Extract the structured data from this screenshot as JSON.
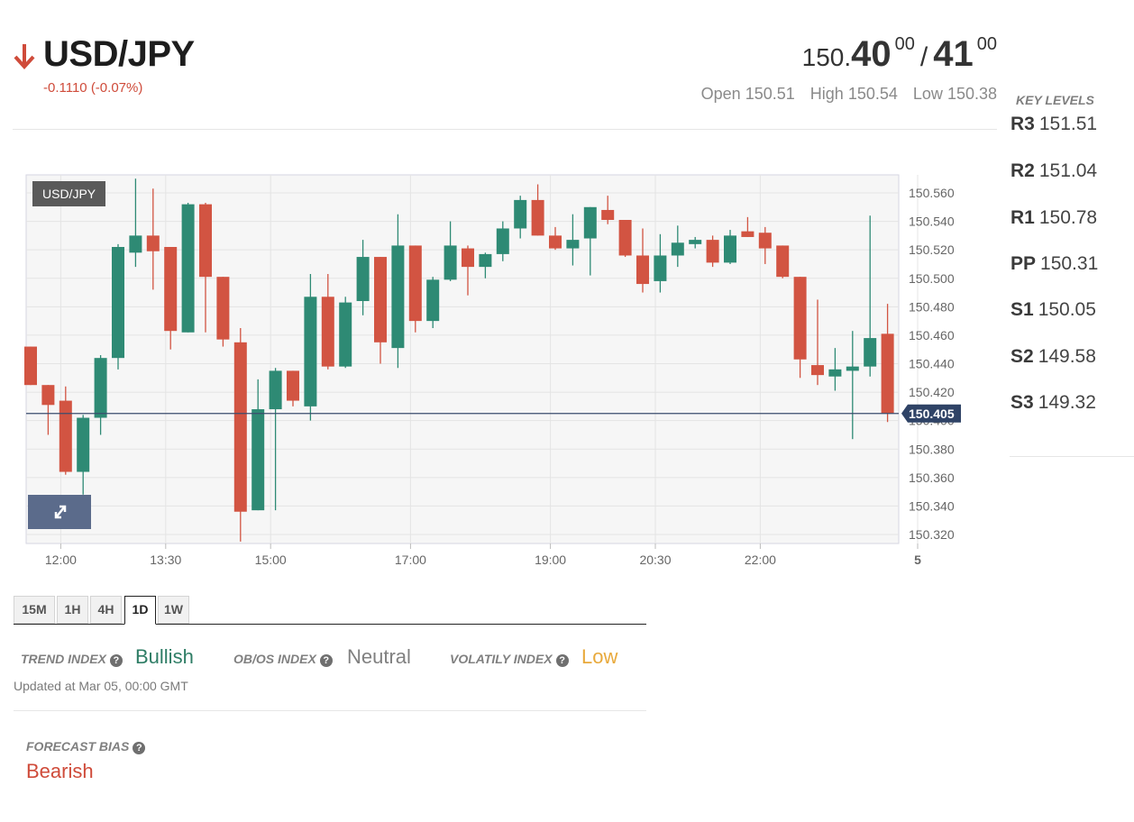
{
  "header": {
    "pair": "USD/JPY",
    "direction": "down",
    "change": "-0.1110 (-0.07%)",
    "bid_int": "150.",
    "bid_big": "40",
    "bid_frac": "00",
    "slash": "/",
    "ask_big": "41",
    "ask_frac": "00",
    "open_label": "Open",
    "open_value": "150.51",
    "high_label": "High",
    "high_value": "150.54",
    "low_label": "Low",
    "low_value": "150.38"
  },
  "key_levels": {
    "title": "KEY LEVELS",
    "items": [
      {
        "name": "R3",
        "value": "151.51"
      },
      {
        "name": "R2",
        "value": "151.04"
      },
      {
        "name": "R1",
        "value": "150.78"
      },
      {
        "name": "PP",
        "value": "150.31"
      },
      {
        "name": "S1",
        "value": "150.05"
      },
      {
        "name": "S2",
        "value": "149.58"
      },
      {
        "name": "S3",
        "value": "149.32"
      }
    ]
  },
  "chart_data": {
    "type": "candlestick",
    "symbol_badge": "USD/JPY",
    "ylim": [
      150.31,
      150.57
    ],
    "yticks": [
      150.56,
      150.54,
      150.52,
      150.5,
      150.48,
      150.46,
      150.44,
      150.42,
      150.4,
      150.38,
      150.36,
      150.34,
      150.32
    ],
    "ytick_labels": [
      "150.560",
      "150.540",
      "150.520",
      "150.500",
      "150.480",
      "150.460",
      "150.440",
      "150.420",
      "150.400",
      "150.380",
      "150.360",
      "150.340",
      "150.320"
    ],
    "xticks": [
      {
        "index": 1,
        "label": "12:00"
      },
      {
        "index": 7,
        "label": "13:30"
      },
      {
        "index": 13,
        "label": "15:00"
      },
      {
        "index": 21,
        "label": "17:00"
      },
      {
        "index": 29,
        "label": "19:00"
      },
      {
        "index": 35,
        "label": "20:30"
      },
      {
        "index": 41,
        "label": "22:00"
      },
      {
        "index": 50,
        "label": "5"
      }
    ],
    "current_price": 150.405,
    "current_price_label": "150.405",
    "candles": [
      {
        "o": 150.452,
        "h": 150.452,
        "l": 150.425,
        "c": 150.425
      },
      {
        "o": 150.425,
        "h": 150.425,
        "l": 150.39,
        "c": 150.411
      },
      {
        "o": 150.414,
        "h": 150.424,
        "l": 150.362,
        "c": 150.364
      },
      {
        "o": 150.364,
        "h": 150.404,
        "l": 150.348,
        "c": 150.402
      },
      {
        "o": 150.402,
        "h": 150.446,
        "l": 150.39,
        "c": 150.444
      },
      {
        "o": 150.444,
        "h": 150.524,
        "l": 150.436,
        "c": 150.522
      },
      {
        "o": 150.518,
        "h": 150.57,
        "l": 150.508,
        "c": 150.53
      },
      {
        "o": 150.53,
        "h": 150.563,
        "l": 150.492,
        "c": 150.519
      },
      {
        "o": 150.522,
        "h": 150.522,
        "l": 150.45,
        "c": 150.463
      },
      {
        "o": 150.462,
        "h": 150.553,
        "l": 150.462,
        "c": 150.552
      },
      {
        "o": 150.552,
        "h": 150.553,
        "l": 150.462,
        "c": 150.501
      },
      {
        "o": 150.501,
        "h": 150.501,
        "l": 150.452,
        "c": 150.457
      },
      {
        "o": 150.455,
        "h": 150.465,
        "l": 150.315,
        "c": 150.336
      },
      {
        "o": 150.337,
        "h": 150.429,
        "l": 150.337,
        "c": 150.408
      },
      {
        "o": 150.408,
        "h": 150.437,
        "l": 150.337,
        "c": 150.435
      },
      {
        "o": 150.435,
        "h": 150.435,
        "l": 150.41,
        "c": 150.414
      },
      {
        "o": 150.41,
        "h": 150.503,
        "l": 150.4,
        "c": 150.487
      },
      {
        "o": 150.487,
        "h": 150.503,
        "l": 150.436,
        "c": 150.438
      },
      {
        "o": 150.438,
        "h": 150.487,
        "l": 150.437,
        "c": 150.483
      },
      {
        "o": 150.484,
        "h": 150.527,
        "l": 150.474,
        "c": 150.515
      },
      {
        "o": 150.515,
        "h": 150.515,
        "l": 150.44,
        "c": 150.455
      },
      {
        "o": 150.451,
        "h": 150.545,
        "l": 150.437,
        "c": 150.523
      },
      {
        "o": 150.523,
        "h": 150.523,
        "l": 150.462,
        "c": 150.47
      },
      {
        "o": 150.47,
        "h": 150.501,
        "l": 150.465,
        "c": 150.499
      },
      {
        "o": 150.499,
        "h": 150.54,
        "l": 150.498,
        "c": 150.523
      },
      {
        "o": 150.521,
        "h": 150.523,
        "l": 150.488,
        "c": 150.508
      },
      {
        "o": 150.508,
        "h": 150.518,
        "l": 150.5,
        "c": 150.517
      },
      {
        "o": 150.517,
        "h": 150.54,
        "l": 150.512,
        "c": 150.535
      },
      {
        "o": 150.535,
        "h": 150.558,
        "l": 150.528,
        "c": 150.555
      },
      {
        "o": 150.555,
        "h": 150.566,
        "l": 150.53,
        "c": 150.53
      },
      {
        "o": 150.53,
        "h": 150.536,
        "l": 150.52,
        "c": 150.521
      },
      {
        "o": 150.521,
        "h": 150.545,
        "l": 150.509,
        "c": 150.527
      },
      {
        "o": 150.528,
        "h": 150.55,
        "l": 150.502,
        "c": 150.55
      },
      {
        "o": 150.548,
        "h": 150.558,
        "l": 150.538,
        "c": 150.541
      },
      {
        "o": 150.541,
        "h": 150.541,
        "l": 150.515,
        "c": 150.516
      },
      {
        "o": 150.516,
        "h": 150.535,
        "l": 150.49,
        "c": 150.496
      },
      {
        "o": 150.498,
        "h": 150.531,
        "l": 150.49,
        "c": 150.516
      },
      {
        "o": 150.516,
        "h": 150.537,
        "l": 150.508,
        "c": 150.525
      },
      {
        "o": 150.524,
        "h": 150.529,
        "l": 150.521,
        "c": 150.527
      },
      {
        "o": 150.527,
        "h": 150.53,
        "l": 150.508,
        "c": 150.511
      },
      {
        "o": 150.511,
        "h": 150.534,
        "l": 150.51,
        "c": 150.53
      },
      {
        "o": 150.533,
        "h": 150.543,
        "l": 150.529,
        "c": 150.529
      },
      {
        "o": 150.532,
        "h": 150.536,
        "l": 150.51,
        "c": 150.521
      },
      {
        "o": 150.523,
        "h": 150.523,
        "l": 150.5,
        "c": 150.501
      },
      {
        "o": 150.501,
        "h": 150.501,
        "l": 150.43,
        "c": 150.443
      },
      {
        "o": 150.439,
        "h": 150.485,
        "l": 150.425,
        "c": 150.432
      },
      {
        "o": 150.431,
        "h": 150.451,
        "l": 150.421,
        "c": 150.436
      },
      {
        "o": 150.435,
        "h": 150.463,
        "l": 150.387,
        "c": 150.438
      },
      {
        "o": 150.438,
        "h": 150.544,
        "l": 150.431,
        "c": 150.458
      },
      {
        "o": 150.461,
        "h": 150.482,
        "l": 150.399,
        "c": 150.405
      }
    ],
    "colors": {
      "up": "#2e8a74",
      "down": "#d25442"
    }
  },
  "timeframes": [
    "15M",
    "1H",
    "4H",
    "1D",
    "1W"
  ],
  "active_timeframe": "1D",
  "indexes": {
    "trend_label": "TREND INDEX",
    "trend_value": "Bullish",
    "obos_label": "OB/OS INDEX",
    "obos_value": "Neutral",
    "vol_label": "VOLATILY INDEX",
    "vol_value": "Low",
    "help_glyph": "?",
    "updated": "Updated at Mar 05, 00:00 GMT"
  },
  "forecast": {
    "label": "FORECAST BIAS",
    "value": "Bearish"
  },
  "colors": {
    "bullish": "#2e7d65",
    "neutral": "#808080",
    "low": "#e8a93b",
    "bearish": "#cf4b3a"
  }
}
